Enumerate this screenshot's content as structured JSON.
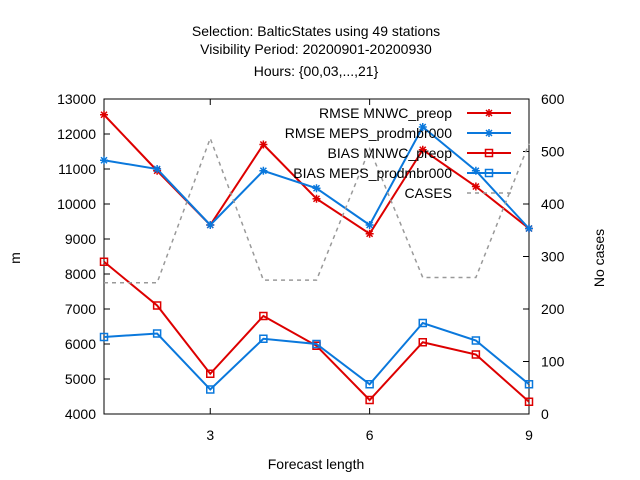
{
  "chart_data": {
    "type": "line",
    "title_lines": [
      "Selection: BalticStates using    49 stations",
      "Visibility   Period: 20200901-20200930",
      "Hours: {00,03,...,21}"
    ],
    "xlabel": "Forecast length",
    "ylabel": "m",
    "y2label": "No cases",
    "xlim": [
      1,
      9
    ],
    "ylim": [
      4000,
      13000
    ],
    "y2lim": [
      0,
      600
    ],
    "x_ticks": [
      3,
      6,
      9
    ],
    "y_ticks": [
      4000,
      5000,
      6000,
      7000,
      8000,
      9000,
      10000,
      11000,
      12000,
      13000
    ],
    "y2_ticks": [
      0,
      100,
      200,
      300,
      400,
      500,
      600
    ],
    "grid": false,
    "legend_position": "top-right",
    "x": [
      1,
      2,
      3,
      4,
      5,
      6,
      7,
      8,
      9
    ],
    "series": [
      {
        "name": "RMSE MNWC_preop",
        "axis": "y",
        "color": "#dd0000",
        "marker": "star",
        "dash": "",
        "values": [
          12550,
          10950,
          9400,
          11700,
          10150,
          9150,
          11550,
          10500,
          9300
        ]
      },
      {
        "name": "RMSE MEPS_prodmbr000",
        "axis": "y",
        "color": "#0a78dc",
        "marker": "star",
        "dash": "",
        "values": [
          11250,
          11000,
          9400,
          10950,
          10450,
          9400,
          12200,
          10950,
          9300
        ]
      },
      {
        "name": "BIAS MNWC_preop",
        "axis": "y",
        "color": "#dd0000",
        "marker": "square",
        "dash": "",
        "values": [
          8350,
          7100,
          5150,
          6800,
          5950,
          4400,
          6050,
          5700,
          4350
        ]
      },
      {
        "name": "BIAS MEPS_prodmbr000",
        "axis": "y",
        "color": "#0a78dc",
        "marker": "square",
        "dash": "",
        "values": [
          6200,
          6300,
          4700,
          6150,
          6000,
          4850,
          6600,
          6100,
          4850
        ]
      },
      {
        "name": "CASES",
        "axis": "y2",
        "color": "#999999",
        "marker": "none",
        "dash": "4,4",
        "values": [
          250,
          250,
          525,
          255,
          255,
          505,
          260,
          260,
          515
        ]
      }
    ]
  }
}
